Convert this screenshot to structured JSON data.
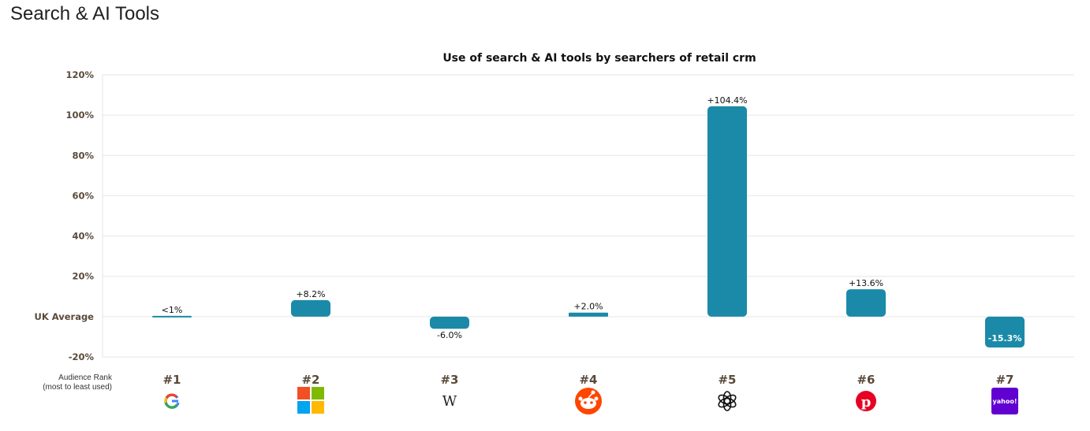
{
  "page": {
    "title": "Search & AI Tools"
  },
  "audience_rank_label": [
    "Audience Rank",
    "(most to least used)"
  ],
  "colors": {
    "bar": "#1b8aa8",
    "grid": "#e6e6e6",
    "tick": "#5a4a3a",
    "title": "#111111"
  },
  "chart_data": {
    "type": "bar",
    "title": "Use of search & AI tools by searchers of retail crm",
    "categories": [
      "#1",
      "#2",
      "#3",
      "#4",
      "#5",
      "#6",
      "#7"
    ],
    "icons": [
      "google-icon",
      "microsoft-icon",
      "wikipedia-icon",
      "reddit-icon",
      "chatgpt-icon",
      "pinterest-icon",
      "yahoo-icon"
    ],
    "values": [
      0.5,
      8.2,
      -6.0,
      2.0,
      104.4,
      13.6,
      -15.3
    ],
    "data_labels": [
      "<1%",
      "+8.2%",
      "-6.0%",
      "+2.0%",
      "+104.4%",
      "+13.6%",
      "-15.3%"
    ],
    "y_ticks": [
      {
        "value": 120,
        "label": "120%"
      },
      {
        "value": 100,
        "label": "100%"
      },
      {
        "value": 80,
        "label": "80%"
      },
      {
        "value": 60,
        "label": "60%"
      },
      {
        "value": 40,
        "label": "40%"
      },
      {
        "value": 20,
        "label": "20%"
      },
      {
        "value": 0,
        "label": "UK Average"
      },
      {
        "value": -20,
        "label": "-20%"
      }
    ],
    "ylim": [
      -20,
      120
    ],
    "grid": true,
    "legend": "none"
  }
}
